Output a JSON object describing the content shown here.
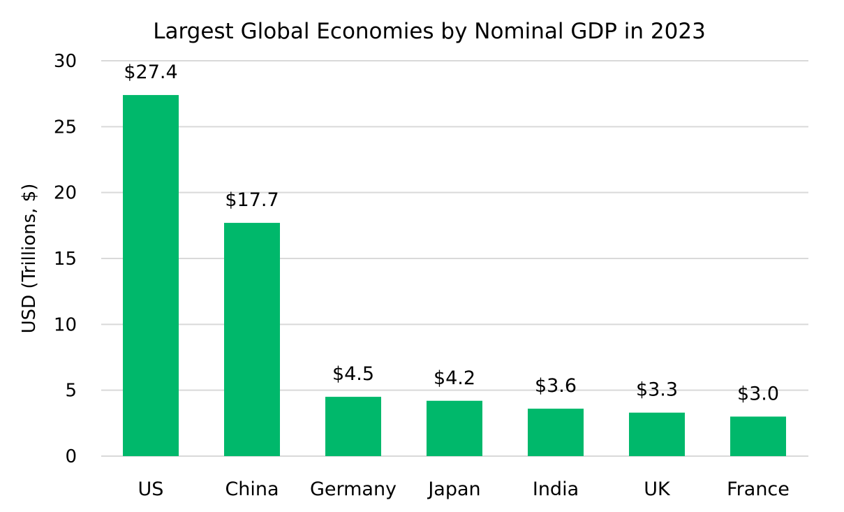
{
  "chart_data": {
    "type": "bar",
    "title": "Largest Global Economies by Nominal GDP in 2023",
    "xlabel": "",
    "ylabel": "USD (Trillions, $)",
    "categories": [
      "US",
      "China",
      "Germany",
      "Japan",
      "India",
      "UK",
      "France"
    ],
    "values": [
      27.4,
      17.7,
      4.5,
      4.2,
      3.6,
      3.3,
      3.0
    ],
    "data_labels": [
      "$27.4",
      "$17.7",
      "$4.5",
      "$4.2",
      "$3.6",
      "$3.3",
      "$3.0"
    ],
    "ylim": [
      0,
      30
    ],
    "yticks": [
      "0",
      "5",
      "10",
      "15",
      "20",
      "25",
      "30"
    ],
    "grid": true,
    "bar_color": "#00B86B",
    "grid_color": "#D9D9D9"
  }
}
